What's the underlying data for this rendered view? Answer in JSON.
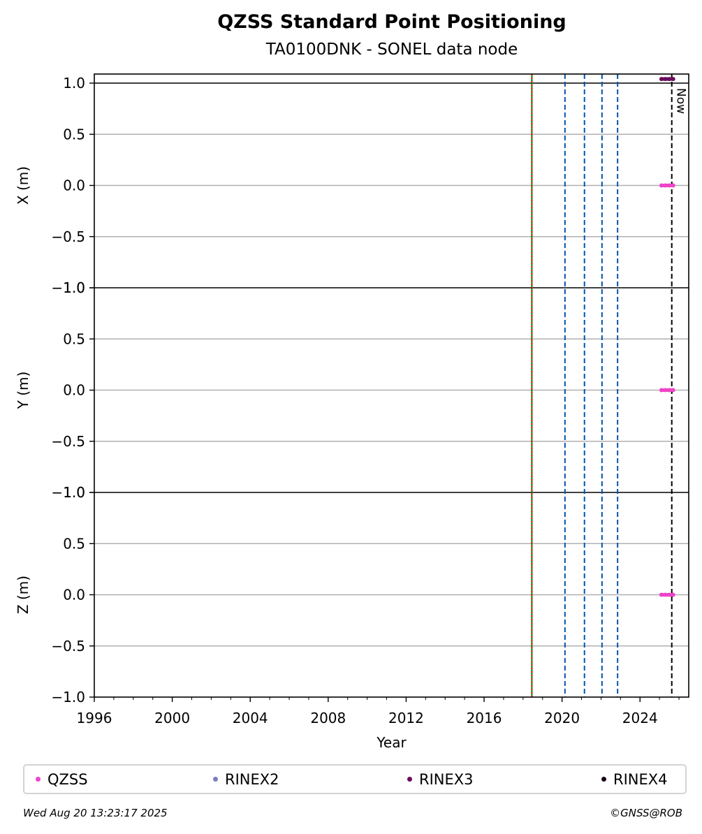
{
  "chart_data": {
    "type": "scatter",
    "title": "QZSS Standard Point Positioning",
    "subtitle": "TA0100DNK - SONEL data node",
    "xlabel": "Year",
    "xlim": [
      1996.0,
      2026.5
    ],
    "x_ticks": [
      1996,
      2000,
      2004,
      2008,
      2012,
      2016,
      2020,
      2024
    ],
    "y_ticks": [
      -1.0,
      -0.5,
      0.0,
      0.5,
      1.0
    ],
    "grid": "horizontal",
    "panels": [
      {
        "name": "X",
        "ylabel": "X (m)",
        "ylim": [
          -1.0,
          1.0
        ]
      },
      {
        "name": "Y",
        "ylabel": "Y (m)",
        "ylim": [
          -1.0,
          1.0
        ]
      },
      {
        "name": "Z",
        "ylabel": "Z (m)",
        "ylim": [
          -1.0,
          1.0
        ]
      }
    ],
    "series": [
      {
        "name": "QZSS",
        "color": "#f043c8",
        "points": {
          "X": [
            [
              2025.1,
              0.0
            ],
            [
              2025.3,
              0.0
            ],
            [
              2025.5,
              0.0
            ],
            [
              2025.7,
              0.0
            ]
          ],
          "Y": [
            [
              2025.1,
              0.0
            ],
            [
              2025.3,
              0.0
            ],
            [
              2025.5,
              0.0
            ],
            [
              2025.7,
              0.0
            ]
          ],
          "Z": [
            [
              2025.1,
              0.0
            ],
            [
              2025.3,
              0.0
            ],
            [
              2025.5,
              0.0
            ],
            [
              2025.7,
              0.0
            ]
          ]
        }
      },
      {
        "name": "RINEX2",
        "color": "#7b7bbf",
        "points": {}
      },
      {
        "name": "RINEX3",
        "color": "#6b0a5e",
        "points": {
          "X": [
            [
              2025.1,
              1.04
            ],
            [
              2025.3,
              1.04
            ],
            [
              2025.5,
              1.04
            ],
            [
              2025.7,
              1.04
            ]
          ]
        }
      },
      {
        "name": "RINEX4",
        "color": "#1a0418",
        "points": {}
      }
    ],
    "event_lines": [
      {
        "year": 2018.45,
        "color": "#008000",
        "style": "solid"
      },
      {
        "year": 2018.45,
        "color": "#ff0000",
        "style": "dotted"
      },
      {
        "year": 2020.15,
        "color": "#0055aa",
        "style": "dashed"
      },
      {
        "year": 2021.15,
        "color": "#0055aa",
        "style": "dashed"
      },
      {
        "year": 2022.05,
        "color": "#0055aa",
        "style": "dashed"
      },
      {
        "year": 2022.85,
        "color": "#0055aa",
        "style": "dashed"
      }
    ],
    "now_line": {
      "year": 2025.63,
      "label": "Now",
      "color": "#000000",
      "style": "dashed"
    },
    "legend": {
      "placement": "bottom"
    }
  },
  "footer": {
    "date": "Wed Aug 20 13:23:17 2025",
    "copyright": "©GNSS@ROB"
  }
}
